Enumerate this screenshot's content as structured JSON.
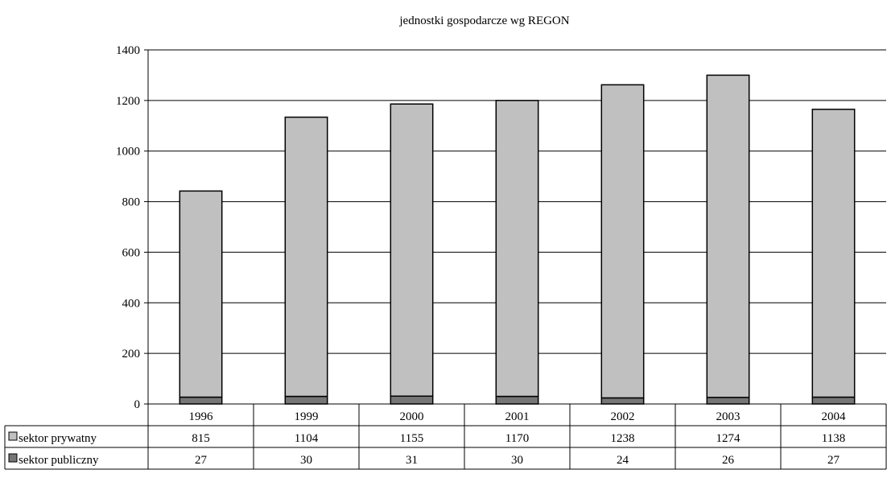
{
  "chart_data": {
    "type": "bar",
    "stacked": true,
    "title": "jednostki gospodarcze wg REGON",
    "xlabel": "",
    "ylabel": "",
    "ylim": [
      0,
      1400
    ],
    "y_ticks": [
      "0",
      "200",
      "400",
      "600",
      "800",
      "1000",
      "1200",
      "1400"
    ],
    "grid": true,
    "legend_placement": "data-table",
    "categories": [
      "1996",
      "1999",
      "2000",
      "2001",
      "2002",
      "2003",
      "2004"
    ],
    "series": [
      {
        "name": "sektor publiczny",
        "color": "#767676",
        "values": [
          27,
          30,
          31,
          30,
          24,
          26,
          27
        ]
      },
      {
        "name": "sektor prywatny",
        "color": "#c0c0c0",
        "values": [
          815,
          1104,
          1155,
          1170,
          1238,
          1274,
          1138
        ]
      }
    ],
    "table_rows": [
      {
        "label": "sektor prywatny",
        "color": "#c0c0c0",
        "values": [
          "815",
          "1104",
          "1155",
          "1170",
          "1238",
          "1274",
          "1138"
        ]
      },
      {
        "label": "sektor publiczny",
        "color": "#767676",
        "values": [
          "27",
          "30",
          "31",
          "30",
          "24",
          "26",
          "27"
        ]
      }
    ]
  }
}
